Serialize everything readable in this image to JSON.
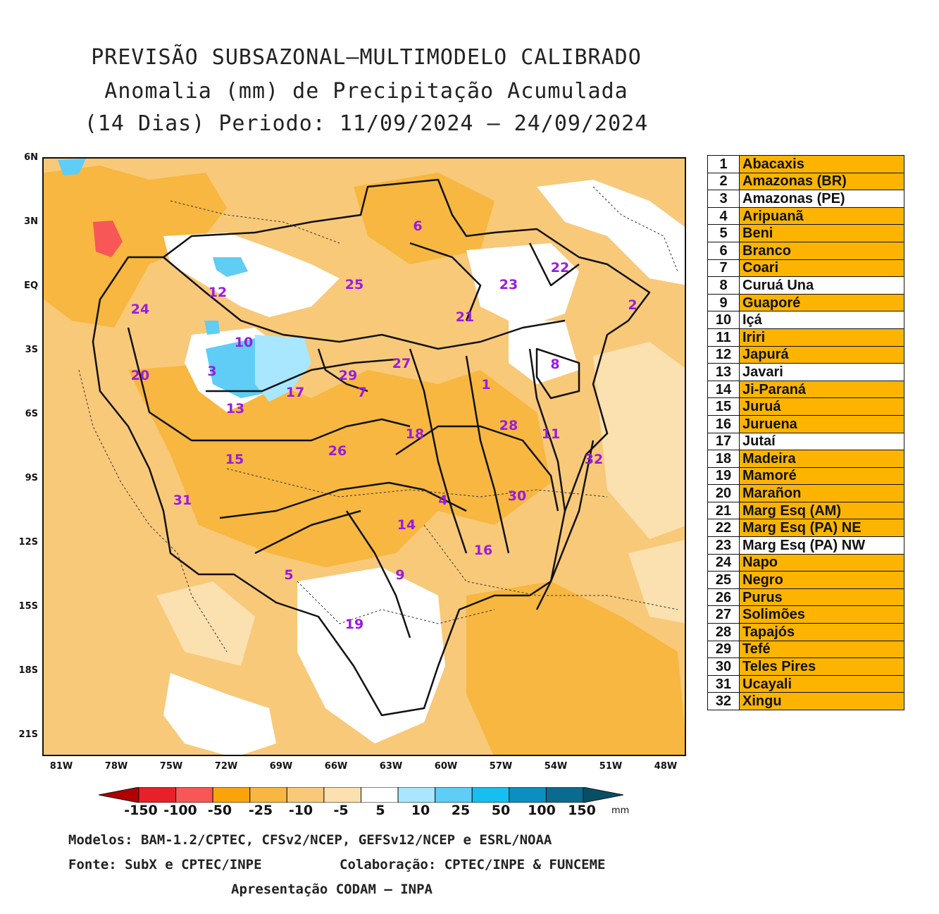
{
  "title": {
    "line1": "PREVISÃO SUBSAZONAL–MULTIMODELO CALIBRADO",
    "line2": "Anomalia (mm) de Precipitação Acumulada",
    "line3": "(14 Dias) Periodo: 11/09/2024 – 24/09/2024"
  },
  "axes": {
    "lat_labels": [
      "6N",
      "3N",
      "EQ",
      "3S",
      "6S",
      "9S",
      "12S",
      "15S",
      "18S",
      "21S"
    ],
    "lon_labels": [
      "81W",
      "78W",
      "75W",
      "72W",
      "69W",
      "66W",
      "63W",
      "60W",
      "57W",
      "54W",
      "51W",
      "48W"
    ]
  },
  "basin_numbers": [
    "1",
    "2",
    "3",
    "4",
    "5",
    "6",
    "7",
    "8",
    "9",
    "10",
    "11",
    "12",
    "13",
    "14",
    "15",
    "16",
    "17",
    "18",
    "19",
    "20",
    "21",
    "22",
    "23",
    "24",
    "25",
    "26",
    "27",
    "28",
    "29",
    "30",
    "31",
    "32"
  ],
  "legend": [
    {
      "num": "1",
      "name": "Abacaxis",
      "highlight": true
    },
    {
      "num": "2",
      "name": "Amazonas (BR)",
      "highlight": true
    },
    {
      "num": "3",
      "name": "Amazonas (PE)",
      "highlight": false
    },
    {
      "num": "4",
      "name": "Aripuanã",
      "highlight": true
    },
    {
      "num": "5",
      "name": "Beni",
      "highlight": true
    },
    {
      "num": "6",
      "name": "Branco",
      "highlight": true
    },
    {
      "num": "7",
      "name": "Coari",
      "highlight": true
    },
    {
      "num": "8",
      "name": "Curuá Una",
      "highlight": false
    },
    {
      "num": "9",
      "name": "Guaporé",
      "highlight": true
    },
    {
      "num": "10",
      "name": "Içá",
      "highlight": false
    },
    {
      "num": "11",
      "name": "Iriri",
      "highlight": true
    },
    {
      "num": "12",
      "name": "Japurá",
      "highlight": true
    },
    {
      "num": "13",
      "name": "Javari",
      "highlight": false
    },
    {
      "num": "14",
      "name": "Ji-Paraná",
      "highlight": true
    },
    {
      "num": "15",
      "name": "Juruá",
      "highlight": true
    },
    {
      "num": "16",
      "name": "Juruena",
      "highlight": true
    },
    {
      "num": "17",
      "name": "Jutaí",
      "highlight": false
    },
    {
      "num": "18",
      "name": "Madeira",
      "highlight": true
    },
    {
      "num": "19",
      "name": "Mamoré",
      "highlight": true
    },
    {
      "num": "20",
      "name": "Marañon",
      "highlight": true
    },
    {
      "num": "21",
      "name": "Marg Esq (AM)",
      "highlight": true
    },
    {
      "num": "22",
      "name": "Marg Esq (PA) NE",
      "highlight": true
    },
    {
      "num": "23",
      "name": "Marg Esq (PA) NW",
      "highlight": false
    },
    {
      "num": "24",
      "name": "Napo",
      "highlight": true
    },
    {
      "num": "25",
      "name": "Negro",
      "highlight": true
    },
    {
      "num": "26",
      "name": "Purus",
      "highlight": true
    },
    {
      "num": "27",
      "name": "Solimões",
      "highlight": true
    },
    {
      "num": "28",
      "name": "Tapajós",
      "highlight": true
    },
    {
      "num": "29",
      "name": "Tefé",
      "highlight": true
    },
    {
      "num": "30",
      "name": "Teles Pires",
      "highlight": true
    },
    {
      "num": "31",
      "name": "Ucayali",
      "highlight": true
    },
    {
      "num": "32",
      "name": "Xingu",
      "highlight": true
    }
  ],
  "colorbar": {
    "labels": [
      "-150",
      "-100",
      "-50",
      "-25",
      "-10",
      "-5",
      "5",
      "10",
      "25",
      "50",
      "100",
      "150"
    ],
    "unit": "mm",
    "colors": [
      "#b00000",
      "#e8202a",
      "#f75757",
      "#f9a40a",
      "#f7b740",
      "#f8c979",
      "#fbe0b0",
      "#ffffff",
      "#a8e7ff",
      "#5fcdf5",
      "#17bff0",
      "#0b8fc0",
      "#0a6a8f",
      "#084f66"
    ]
  },
  "colors": {
    "highlight": "#fcb400",
    "basin_label": "#9a1be0",
    "anomaly_base": "#f8c979",
    "anomaly_strong": "#f7b740",
    "anomaly_light": "#fbe0b0",
    "anomaly_wet": "#5fcdf5"
  },
  "credits": {
    "line1": "Modelos: BAM-1.2/CPTEC, CFSv2/NCEP, GEFSv12/NCEP e ESRL/NOAA",
    "fonte": "Fonte: SubX e CPTEC/INPE",
    "colab": "Colaboração: CPTEC/INPE & FUNCEME",
    "line3": "Apresentação CODAM – INPA"
  }
}
